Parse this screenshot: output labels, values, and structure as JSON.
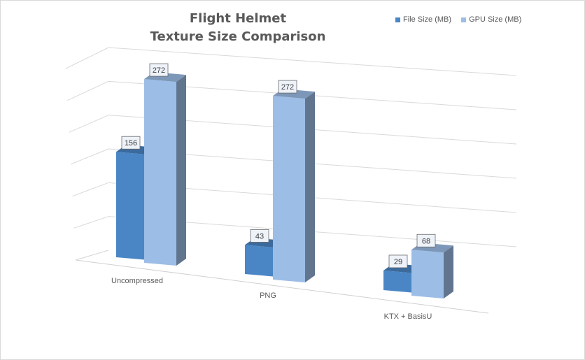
{
  "chart_data": {
    "type": "bar",
    "title_line1": "Flight Helmet",
    "title_line2": "Texture Size Comparison",
    "categories": [
      "Uncompressed",
      "PNG",
      "KTX + BasisU"
    ],
    "series": [
      {
        "name": "File Size (MB)",
        "values": [
          156,
          43,
          29
        ],
        "color": "#4a86c5"
      },
      {
        "name": "GPU Size (MB)",
        "values": [
          272,
          272,
          68
        ],
        "color": "#9cbde6"
      }
    ],
    "ylim": [
      0,
      300
    ],
    "grid": true,
    "legend": "top-right",
    "data_labels": true,
    "chart_style": "3d-clustered-column"
  }
}
